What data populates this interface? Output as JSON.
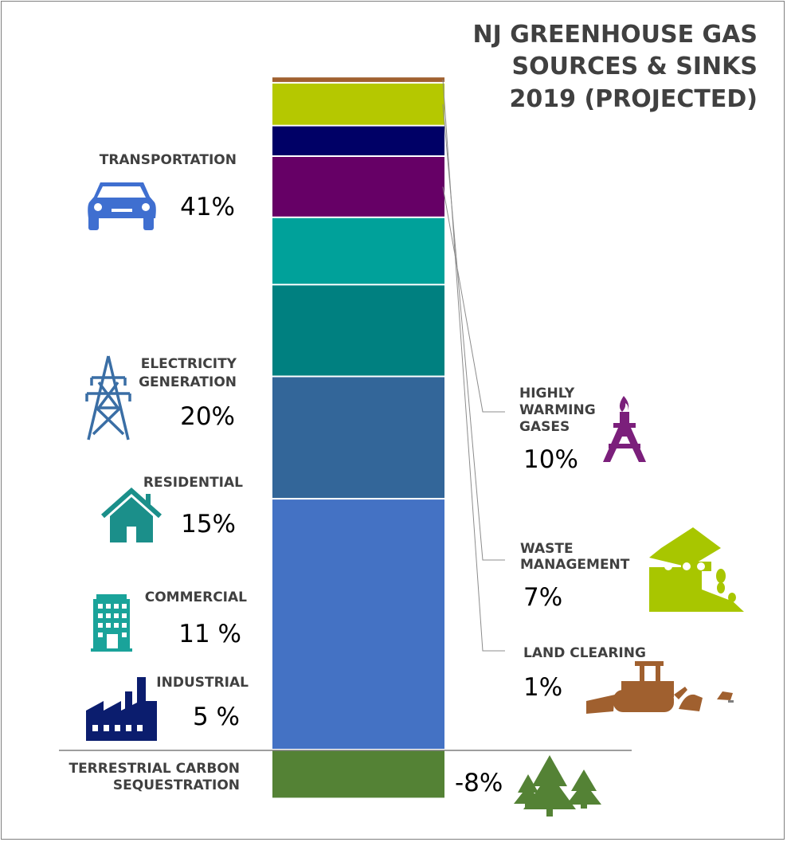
{
  "chart_data": {
    "type": "bar",
    "subtype": "stacked-single-column",
    "title": [
      "NJ GREENHOUSE GAS",
      "SOURCES & SINKS",
      "2019 (PROJECTED)"
    ],
    "unit": "%",
    "baseline": 0,
    "segments": [
      {
        "key": "transportation",
        "label": [
          "TRANSPORTATION"
        ],
        "value": 41,
        "display": "41%",
        "color": "#4472c4",
        "icon": "car-icon"
      },
      {
        "key": "electricity",
        "label": [
          "ELECTRICITY",
          "GENERATION"
        ],
        "value": 20,
        "display": "20%",
        "color": "#336699",
        "icon": "power-tower-icon"
      },
      {
        "key": "residential",
        "label": [
          "RESIDENTIAL"
        ],
        "value": 15,
        "display": "15%",
        "color": "#008080",
        "icon": "house-icon"
      },
      {
        "key": "commercial",
        "label": [
          "COMMERCIAL"
        ],
        "value": 11,
        "display": "11 %",
        "color": "#00a19a",
        "icon": "office-building-icon"
      },
      {
        "key": "highly_warming",
        "label": [
          "HIGHLY",
          "WARMING",
          "GASES"
        ],
        "value": 10,
        "display": "10%",
        "color": "#660066",
        "icon": "gas-flare-icon",
        "labelColor": "#7b1f7b"
      },
      {
        "key": "industrial",
        "label": [
          "INDUSTRIAL"
        ],
        "value": 5,
        "display": "5 %",
        "color": "#000066",
        "icon": "factory-icon"
      },
      {
        "key": "waste",
        "label": [
          "WASTE",
          "MANAGEMENT"
        ],
        "value": 7,
        "display": "7%",
        "color": "#b5c800",
        "icon": "dump-truck-icon",
        "labelColor": "#a8c400"
      },
      {
        "key": "land_clearing",
        "label": [
          "LAND CLEARING"
        ],
        "value": 1,
        "display": "1%",
        "color": "#a0602f",
        "icon": "bulldozer-icon",
        "labelColor": "#a0602f"
      },
      {
        "key": "terrestrial",
        "label": [
          "TERRESTRIAL CARBON",
          "SEQUESTRATION"
        ],
        "value": -8,
        "display": "-8%",
        "color": "#548235",
        "icon": "trees-icon",
        "labelColor": "#548235"
      }
    ]
  }
}
